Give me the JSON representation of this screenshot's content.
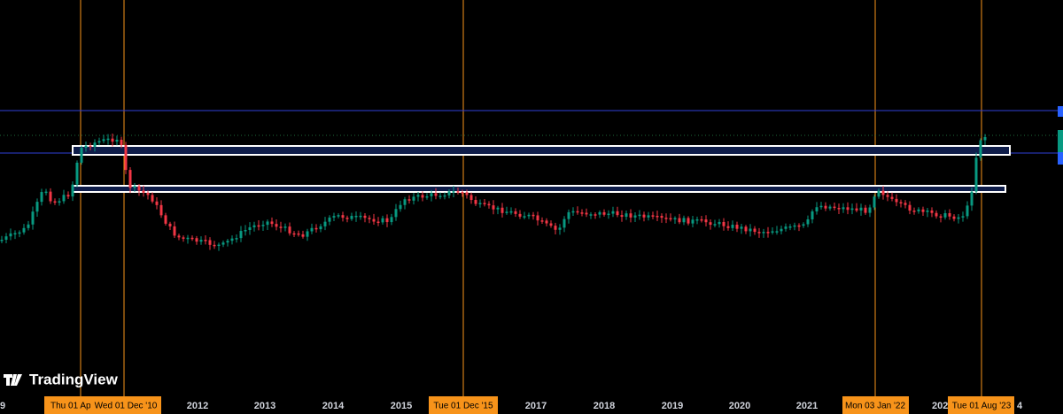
{
  "axis": {
    "labels": [
      "9",
      "2012",
      "2013",
      "2014",
      "2015",
      "2017",
      "2018",
      "2019",
      "2020",
      "2021",
      "202",
      "4"
    ]
  },
  "highlights": [
    "Thu 01 Ap",
    "Wed 01 Dec '10",
    "Tue 01 Dec '15",
    "Mon 03 Jan '22",
    "Tue 01 Aug '23"
  ],
  "logo": {
    "text": "TradingView"
  }
}
